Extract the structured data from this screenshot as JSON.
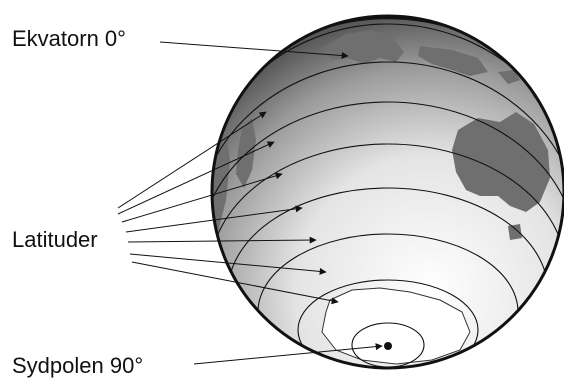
{
  "labels": {
    "equator": "Ekvatorn 0°",
    "latitudes": "Latituder",
    "south_pole": "Sydpolen 90°"
  },
  "colors": {
    "land": "#6f6f6f",
    "outline": "#111111",
    "globe_light": "#ffffff",
    "globe_dark": "#3e3e3e"
  }
}
